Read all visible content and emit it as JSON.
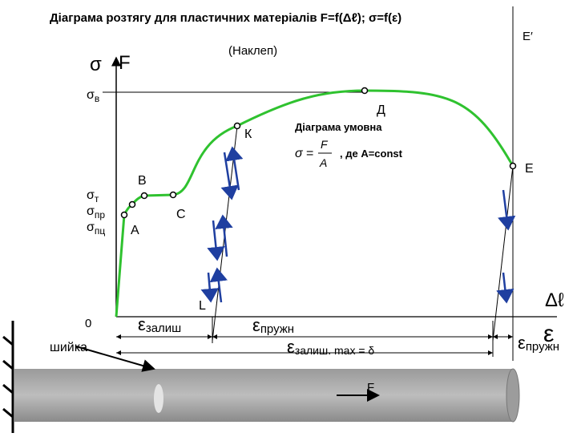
{
  "title": "Діаграма розтягу для пластичних матеріалів F=f(Δℓ); σ=f(ε)",
  "hardening": "(Наклеп)",
  "e_prime": "E′",
  "axis": {
    "sigma": "σ",
    "force": "F",
    "origin": "0",
    "delta_l": "Δℓ",
    "epsilon": "ε"
  },
  "stress_levels": [
    {
      "symbol": "σ",
      "sub": "в"
    },
    {
      "symbol": "σ",
      "sub": "т"
    },
    {
      "symbol": "σ",
      "sub": "пр"
    },
    {
      "symbol": "σ",
      "sub": "пц"
    }
  ],
  "points": {
    "d": "Д",
    "k": "К",
    "b": "В",
    "c": "С",
    "a": "А",
    "e": "Е",
    "l": "L"
  },
  "conditional": {
    "caption": "Діаграма умовна",
    "sigma": "σ",
    "equals": "=",
    "numerator": "F",
    "denominator": "A",
    "note": ", де A=const"
  },
  "strains": {
    "residual": {
      "symbol": "ε",
      "sub": "залиш"
    },
    "elastic": {
      "symbol": "ε",
      "sub": "пружн"
    },
    "residual_max": {
      "symbol": "ε",
      "sub": "залиш. max = δ"
    },
    "elastic_end": {
      "symbol": "ε",
      "sub": "пружн"
    }
  },
  "neck": "шийка",
  "specimen_force": "F"
}
